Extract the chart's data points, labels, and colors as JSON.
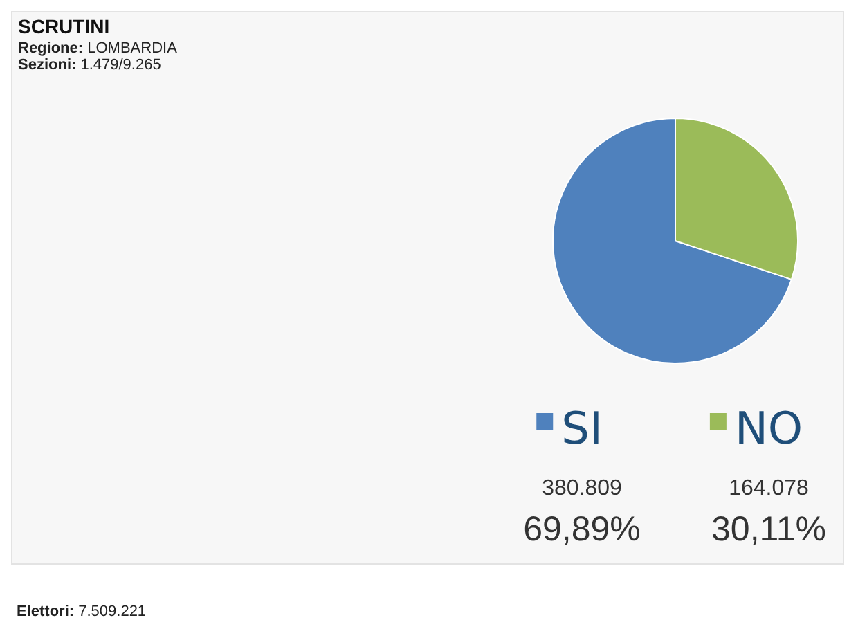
{
  "chart_data": {
    "type": "pie",
    "title": "SCRUTINI",
    "subtitle": "Regione: LOMBARDIA\nSezioni: 1.479/9.265",
    "categories": [
      "SI",
      "NO"
    ],
    "values": [
      69.89,
      30.11
    ],
    "colors": [
      "#4f81bd",
      "#9bbb59"
    ],
    "annotations": [
      "380.809",
      "69,89%",
      "164.078",
      "30,11%",
      "Elettori: 7.509.221"
    ],
    "legend": "bottom"
  }
}
